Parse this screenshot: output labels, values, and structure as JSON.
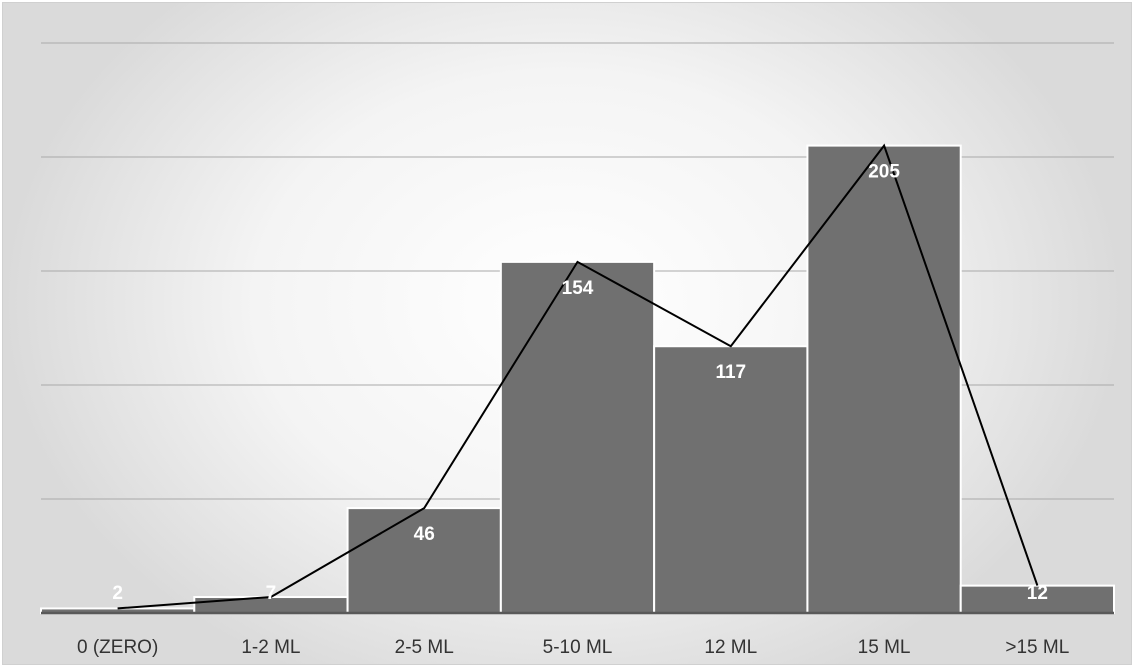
{
  "chart_data": {
    "type": "bar",
    "title": "",
    "xlabel": "",
    "ylabel": "",
    "categories": [
      "0 (ZERO)",
      "1-2 ML",
      "2-5 ML",
      "5-10 ML",
      "12 ML",
      "15 ML",
      ">15 ML"
    ],
    "series": [
      {
        "values": [
          2,
          7,
          46,
          154,
          117,
          205,
          12
        ],
        "render": "bar"
      },
      {
        "values": [
          2,
          7,
          46,
          154,
          117,
          205,
          12
        ],
        "render": "line"
      }
    ],
    "data_labels": [
      "2",
      "7",
      "46",
      "154",
      "117",
      "205",
      "12"
    ],
    "ylim": [
      0,
      250
    ],
    "y_tick_step": 50,
    "y_tick_labels_visible": false,
    "grid": true,
    "legend": "none",
    "colors": {
      "bar": "#707070",
      "bar_border": "#ffffff",
      "line": "#000000",
      "gridline": "#a9a9a9",
      "axis": "#595959",
      "data_label": "#ffffff",
      "tick_label": "#333333"
    }
  }
}
